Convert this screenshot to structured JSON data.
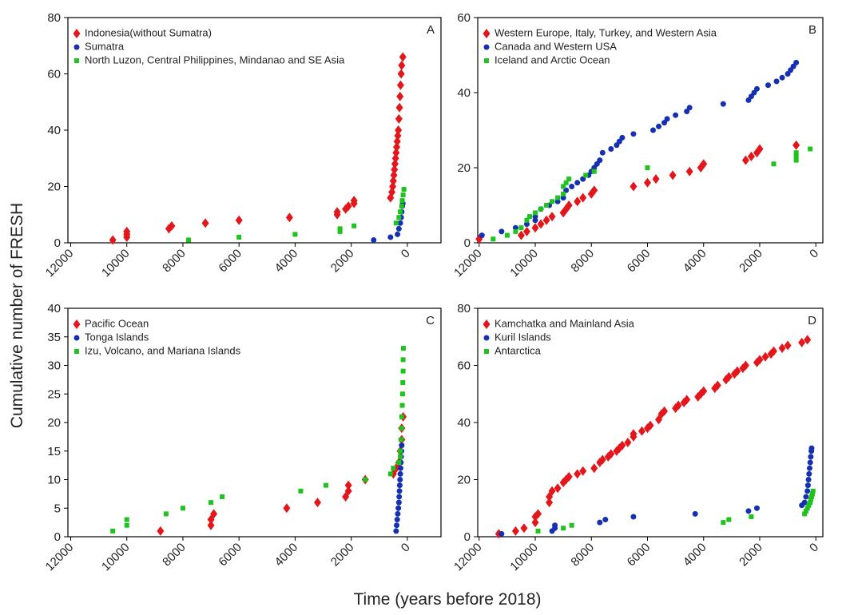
{
  "ylabel": "Cumulative number of FRESH",
  "xlabel": "Time (years before 2018)",
  "chart_data": [
    {
      "type": "scatter",
      "label": "A",
      "xlim": [
        12100,
        -1200
      ],
      "xticks": [
        12000,
        10000,
        8000,
        6000,
        4000,
        2000,
        0
      ],
      "ylim": [
        0,
        80
      ],
      "yticks": [
        0,
        20,
        40,
        60,
        80
      ],
      "series": [
        {
          "name": "Indonesia(without Sumatra)",
          "color": "#e3161b",
          "marker": "diamond",
          "x": [
            10500,
            10000,
            10000,
            10000,
            8500,
            8400,
            7200,
            6000,
            4200,
            2500,
            2500,
            2200,
            2100,
            1900,
            1900,
            600,
            550,
            520,
            500,
            480,
            460,
            440,
            420,
            400,
            380,
            360,
            340,
            320,
            300,
            280,
            260,
            240,
            220,
            200,
            160
          ],
          "values": [
            1,
            2,
            3,
            4,
            5,
            6,
            7,
            8,
            9,
            10,
            11,
            12,
            13,
            14,
            15,
            16,
            18,
            20,
            22,
            24,
            26,
            28,
            30,
            32,
            34,
            36,
            38,
            40,
            44,
            48,
            52,
            56,
            60,
            63,
            66
          ]
        },
        {
          "name": "Sumatra",
          "color": "#1530b0",
          "marker": "circle",
          "x": [
            1200,
            600,
            350,
            300,
            250,
            220,
            200,
            180,
            160
          ],
          "values": [
            1,
            2,
            3,
            5,
            7,
            9,
            11,
            13,
            14
          ]
        },
        {
          "name": "North Luzon, Central Philippines, Mindanao and SE Asia",
          "color": "#1fc21f",
          "marker": "square",
          "x": [
            7800,
            6000,
            4000,
            2400,
            2400,
            1900,
            400,
            300,
            250,
            200,
            180,
            150,
            120
          ],
          "values": [
            1,
            2,
            3,
            4,
            5,
            6,
            7,
            9,
            11,
            13,
            15,
            17,
            19
          ]
        }
      ]
    },
    {
      "type": "scatter",
      "label": "B",
      "xlim": [
        12050,
        -250
      ],
      "xticks": [
        12000,
        10000,
        8000,
        6000,
        4000,
        2000,
        0
      ],
      "ylim": [
        0,
        60
      ],
      "yticks": [
        0,
        20,
        40,
        60
      ],
      "series": [
        {
          "name": "Western Europe, Italy, Turkey, and Western Asia",
          "color": "#e3161b",
          "marker": "diamond",
          "x": [
            12000,
            10500,
            10300,
            10000,
            9800,
            9600,
            9400,
            9000,
            8900,
            8800,
            8500,
            8300,
            8000,
            7900,
            6500,
            6000,
            5700,
            5100,
            4500,
            4100,
            4000,
            2500,
            2300,
            2100,
            2000,
            700
          ],
          "values": [
            1,
            2,
            3,
            4,
            5,
            6,
            7,
            8,
            9,
            10,
            11,
            12,
            13,
            14,
            15,
            16,
            17,
            18,
            19,
            20,
            21,
            22,
            23,
            24,
            25,
            26
          ]
        },
        {
          "name": "Canada and Western USA",
          "color": "#1530b0",
          "marker": "circle",
          "x": [
            11900,
            11200,
            10700,
            10300,
            10000,
            10000,
            9800,
            9500,
            9200,
            9000,
            8900,
            8700,
            8500,
            8300,
            8100,
            8000,
            7900,
            7800,
            7700,
            7600,
            7300,
            7100,
            7000,
            6900,
            6500,
            5800,
            5600,
            5400,
            5300,
            5000,
            4600,
            4500,
            3300,
            2400,
            2300,
            2200,
            2100,
            1700,
            1400,
            1200,
            1000,
            900,
            800,
            700
          ],
          "values": [
            2,
            3,
            4,
            5,
            6,
            7,
            9,
            10,
            11,
            12,
            14,
            15,
            16,
            17,
            18,
            19,
            20,
            21,
            22,
            24,
            25,
            26,
            27,
            28,
            29,
            30,
            31,
            32,
            33,
            34,
            35,
            36,
            37,
            38,
            39,
            40,
            41,
            42,
            43,
            44,
            45,
            46,
            47,
            48
          ]
        },
        {
          "name": "Iceland and Arctic Ocean",
          "color": "#1fc21f",
          "marker": "square",
          "x": [
            11500,
            11000,
            10700,
            10500,
            10300,
            10200,
            10000,
            9800,
            9600,
            9400,
            9200,
            9000,
            9000,
            8900,
            8800,
            8200,
            7900,
            6000,
            1500,
            700,
            700,
            700,
            200
          ],
          "values": [
            1,
            2,
            3,
            4,
            6,
            7,
            8,
            9,
            10,
            11,
            12,
            13,
            15,
            16,
            17,
            18,
            19,
            20,
            21,
            22,
            23,
            24,
            25
          ]
        }
      ]
    },
    {
      "type": "scatter",
      "label": "C",
      "xlim": [
        12100,
        -1200
      ],
      "xticks": [
        12000,
        10000,
        8000,
        6000,
        4000,
        2000,
        0
      ],
      "ylim": [
        0,
        40
      ],
      "yticks": [
        0,
        5,
        10,
        15,
        20,
        25,
        30,
        35,
        40
      ],
      "series": [
        {
          "name": "Pacific Ocean",
          "color": "#e3161b",
          "marker": "diamond",
          "x": [
            8800,
            7000,
            7000,
            6900,
            4300,
            3200,
            2200,
            2100,
            2100,
            1500,
            500,
            400,
            300,
            250,
            200,
            200,
            150
          ],
          "values": [
            1,
            2,
            3,
            4,
            5,
            6,
            7,
            8,
            9,
            10,
            11,
            12,
            13,
            15,
            17,
            19,
            21
          ]
        },
        {
          "name": "Tonga Islands",
          "color": "#1530b0",
          "marker": "circle",
          "x": [
            400,
            380,
            360,
            340,
            320,
            300,
            290,
            280,
            270,
            260,
            250,
            240,
            230,
            220,
            210,
            200
          ],
          "values": [
            1,
            2,
            3,
            4,
            5,
            6,
            7,
            8,
            9,
            10,
            11,
            12,
            13,
            14,
            15,
            16
          ]
        },
        {
          "name": "Izu, Volcano, and Mariana Islands",
          "color": "#1fc21f",
          "marker": "square",
          "x": [
            10500,
            10000,
            10000,
            8600,
            8000,
            7000,
            6600,
            3800,
            2900,
            1500,
            600,
            500,
            300,
            250,
            250,
            220,
            200,
            200,
            180,
            170,
            160,
            150,
            150,
            140
          ],
          "values": [
            1,
            2,
            3,
            4,
            5,
            6,
            7,
            8,
            9,
            10,
            11,
            12,
            13,
            14,
            15,
            17,
            19,
            21,
            23,
            25,
            27,
            29,
            31,
            33
          ]
        }
      ]
    },
    {
      "type": "scatter",
      "label": "D",
      "xlim": [
        12050,
        -250
      ],
      "xticks": [
        12000,
        10000,
        8000,
        6000,
        4000,
        2000,
        0
      ],
      "ylim": [
        0,
        80
      ],
      "yticks": [
        0,
        20,
        40,
        60,
        80
      ],
      "series": [
        {
          "name": "Kamchatka and Mainland Asia",
          "color": "#e3161b",
          "marker": "diamond",
          "x": [
            11300,
            10700,
            10400,
            10000,
            10000,
            9900,
            9500,
            9500,
            9400,
            9200,
            9000,
            8900,
            8800,
            8500,
            8300,
            7900,
            7700,
            7600,
            7400,
            7300,
            7100,
            7000,
            6900,
            6700,
            6500,
            6500,
            6200,
            6000,
            5900,
            5600,
            5500,
            5400,
            5000,
            4900,
            4700,
            4600,
            4200,
            4100,
            4000,
            3600,
            3500,
            3200,
            3100,
            2900,
            2800,
            2600,
            2500,
            2100,
            2000,
            1800,
            1600,
            1500,
            1200,
            1000,
            500,
            300
          ],
          "values": [
            1,
            2,
            3,
            5,
            7,
            8,
            12,
            14,
            16,
            17,
            19,
            20,
            21,
            22,
            23,
            24,
            26,
            27,
            28,
            29,
            30,
            31,
            32,
            33,
            35,
            36,
            37,
            38,
            39,
            41,
            43,
            44,
            45,
            46,
            47,
            48,
            49,
            50,
            51,
            52,
            53,
            55,
            56,
            57,
            58,
            59,
            60,
            61,
            62,
            63,
            64,
            65,
            66,
            67,
            68,
            69
          ]
        },
        {
          "name": "Kuril Islands",
          "color": "#1530b0",
          "marker": "circle",
          "x": [
            11200,
            9400,
            9300,
            9300,
            7700,
            7500,
            6500,
            4300,
            2400,
            2100,
            500,
            400,
            350,
            300,
            280,
            260,
            240,
            220,
            200,
            180,
            160,
            150
          ],
          "values": [
            1,
            2,
            3,
            4,
            5,
            6,
            7,
            8,
            9,
            10,
            11,
            12,
            14,
            16,
            18,
            20,
            22,
            24,
            26,
            28,
            30,
            31
          ]
        },
        {
          "name": "Antarctica",
          "color": "#1fc21f",
          "marker": "square",
          "x": [
            9900,
            9000,
            8700,
            3300,
            3100,
            2300,
            400,
            350,
            300,
            250,
            200,
            180,
            150,
            120,
            100
          ],
          "values": [
            2,
            3,
            4,
            5,
            6,
            7,
            8,
            9,
            10,
            11,
            12,
            13,
            14,
            15,
            16
          ]
        }
      ]
    }
  ]
}
